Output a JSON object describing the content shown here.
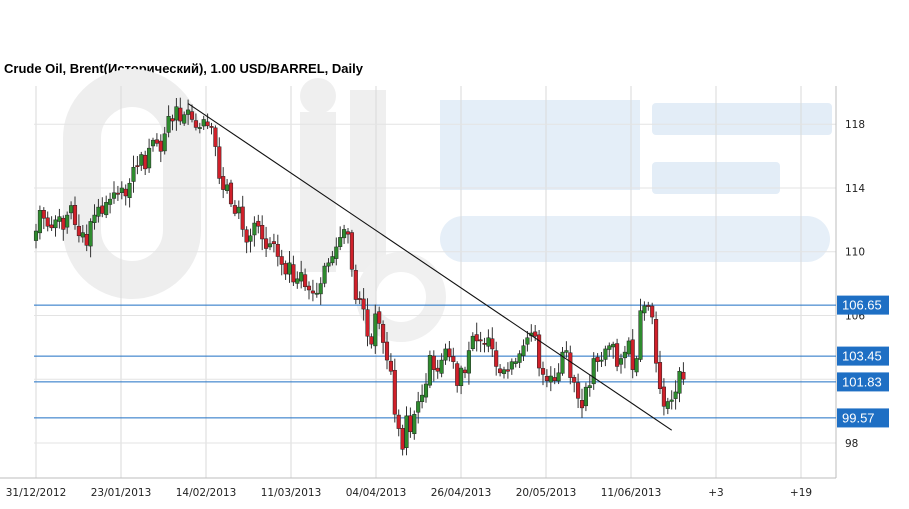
{
  "chart_data": {
    "type": "candlestick",
    "title": "Crude Oil, Brent(Исторический), 1.00 USD/BARREL, Daily",
    "watermark": "OilStat",
    "y_ticks": [
      98,
      102,
      106,
      110,
      114,
      118
    ],
    "y_tick_labels": [
      "98",
      "",
      "106",
      "110",
      "114",
      "118"
    ],
    "x_tick_labels": [
      "31/12/2012",
      "23/01/2013",
      "14/02/2013",
      "11/03/2013",
      "04/04/2013",
      "26/04/2013",
      "20/05/2013",
      "11/06/2013",
      "+3",
      "+19"
    ],
    "ylim": [
      95.8,
      120.4
    ],
    "grid": true,
    "bull_color": "#2e8b2e",
    "bear_color": "#d0202a",
    "level_color": "#1e6fc4",
    "levels": [
      {
        "value": 106.65,
        "label": "106.65"
      },
      {
        "value": 103.45,
        "label": "103.45"
      },
      {
        "value": 101.83,
        "label": "101.83"
      },
      {
        "value": 99.57,
        "label": "99.57"
      }
    ],
    "trendline": {
      "start": {
        "bar": 39,
        "price": 119.3
      },
      "end": {
        "bar": 163,
        "price": 98.8
      }
    },
    "closes": [
      111.3,
      112.6,
      112.1,
      111.6,
      111.5,
      112.0,
      112.2,
      111.4,
      112.3,
      112.9,
      111.7,
      111.0,
      111.2,
      110.4,
      111.9,
      112.3,
      112.8,
      112.4,
      113.1,
      113.3,
      113.7,
      113.6,
      114.0,
      113.5,
      114.3,
      115.3,
      115.4,
      116.1,
      115.2,
      116.5,
      117.0,
      116.8,
      116.3,
      117.4,
      118.5,
      118.2,
      119.1,
      118.2,
      118.6,
      118.9,
      118.3,
      117.8,
      117.8,
      118.3,
      117.9,
      117.8,
      116.6,
      114.6,
      113.9,
      114.2,
      113.0,
      112.4,
      112.8,
      111.4,
      110.6,
      111.0,
      111.8,
      111.6,
      110.8,
      110.2,
      110.5,
      110.5,
      109.7,
      109.2,
      108.6,
      109.3,
      108.1,
      108.3,
      108.7,
      107.8,
      107.6,
      107.4,
      107.4,
      108.0,
      109.1,
      109.3,
      109.7,
      110.3,
      110.9,
      111.4,
      111.1,
      108.9,
      107.0,
      107.0,
      106.4,
      104.7,
      104.2,
      106.1,
      105.5,
      104.3,
      103.2,
      102.5,
      99.8,
      98.9,
      97.6,
      99.7,
      98.7,
      99.8,
      100.6,
      101.0,
      101.7,
      103.5,
      102.6,
      102.5,
      103.2,
      103.9,
      103.4,
      103.1,
      101.6,
      102.7,
      102.4,
      103.8,
      104.7,
      104.4,
      104.4,
      104.2,
      104.6,
      103.9,
      102.8,
      102.4,
      102.6,
      102.5,
      103.1,
      103.1,
      103.6,
      104.1,
      104.6,
      104.9,
      104.7,
      102.7,
      102.3,
      101.9,
      102.2,
      101.9,
      102.4,
      103.7,
      103.8,
      102.1,
      101.8,
      100.8,
      100.2,
      101.5,
      101.6,
      103.3,
      103.1,
      103.2,
      103.9,
      104.1,
      104.2,
      102.8,
      103.3,
      103.7,
      104.4,
      102.6,
      103.3,
      106.3,
      106.6,
      106.6,
      105.9,
      103.0,
      101.4,
      100.3,
      100.6,
      100.7,
      101.2,
      102.5,
      102.0
    ]
  }
}
